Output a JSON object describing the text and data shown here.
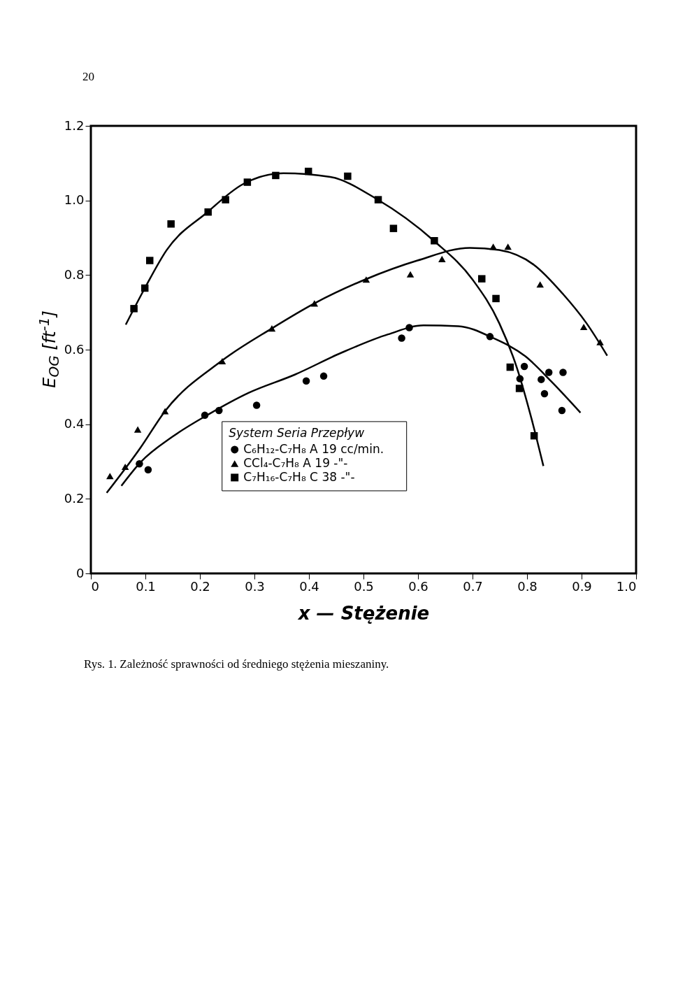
{
  "chart_data": {
    "type": "scatter",
    "xlabel": "x — Stężenie",
    "ylabel": "E$_{OG}$ [ft$^{-1}$]",
    "legend_title": "System   Seria   Przepływ",
    "legend": "bottom",
    "xlim": [
      0,
      1
    ],
    "xticks": [
      0,
      0.1,
      0.2,
      0.3,
      0.4,
      0.5,
      0.6,
      0.7,
      0.8,
      0.9,
      {
        "value": 1,
        "label": "1.0"
      }
    ],
    "ylim": [
      0,
      1.2
    ],
    "yticks": [
      0,
      0.2,
      0.4,
      0.6,
      0.8,
      {
        "value": 1,
        "label": "1.0"
      },
      1.2
    ],
    "annotations": [
      "20",
      "Rys. 1. Zależność sprawności od średniego stężenia mieszaniny."
    ],
    "series": [
      {
        "type": "scatter",
        "name": "C₆H₁₂-C₇H₈   A   19 cc/min.",
        "color": "#000000",
        "marker": "circle",
        "x": [
          0.089,
          0.105,
          0.209,
          0.235,
          0.304,
          0.395,
          0.427,
          0.57,
          0.584,
          0.732,
          0.787,
          0.795,
          0.826,
          0.832,
          0.84,
          0.864,
          0.866
        ],
        "values": [
          0.294,
          0.278,
          0.424,
          0.437,
          0.451,
          0.516,
          0.529,
          0.631,
          0.659,
          0.635,
          0.522,
          0.555,
          0.52,
          0.482,
          0.539,
          0.437,
          0.539
        ]
      },
      {
        "type": "scatter",
        "name": "CCl₄-C₇H₈   A   19  -\"-",
        "color": "#000000",
        "marker": "triangle",
        "x": [
          0.035,
          0.063,
          0.086,
          0.136,
          0.241,
          0.332,
          0.41,
          0.505,
          0.586,
          0.644,
          0.738,
          0.765,
          0.824,
          0.904,
          0.934
        ],
        "values": [
          0.261,
          0.286,
          0.386,
          0.435,
          0.569,
          0.657,
          0.724,
          0.788,
          0.802,
          0.843,
          0.876,
          0.876,
          0.775,
          0.661,
          0.62
        ]
      },
      {
        "type": "scatter",
        "name": "C₇H₁₆-C₇H₈   C   38  -\"-",
        "color": "#000000",
        "marker": "square",
        "x": [
          0.079,
          0.099,
          0.108,
          0.147,
          0.215,
          0.247,
          0.287,
          0.339,
          0.399,
          0.471,
          0.527,
          0.555,
          0.63,
          0.717,
          0.743,
          0.769,
          0.786,
          0.813
        ],
        "values": [
          0.71,
          0.765,
          0.839,
          0.937,
          0.969,
          1.002,
          1.049,
          1.067,
          1.078,
          1.065,
          1.002,
          0.925,
          0.892,
          0.79,
          0.737,
          0.553,
          0.496,
          0.369
        ]
      },
      {
        "type": "line",
        "color": "#000000",
        "line_style": "solid",
        "x": [
          0.056,
          0.091,
          0.15,
          0.214,
          0.289,
          0.374,
          0.46,
          0.545,
          0.61,
          0.674,
          0.738,
          0.797,
          0.845,
          0.898
        ],
        "values": [
          0.235,
          0.298,
          0.367,
          0.425,
          0.484,
          0.533,
          0.592,
          0.641,
          0.665,
          0.663,
          0.631,
          0.582,
          0.514,
          0.431
        ]
      },
      {
        "type": "line",
        "color": "#000000",
        "line_style": "solid",
        "x": [
          0.029,
          0.091,
          0.136,
          0.239,
          0.332,
          0.41,
          0.503,
          0.599,
          0.695,
          0.749,
          0.813,
          0.866,
          0.909,
          0.947
        ],
        "values": [
          0.216,
          0.337,
          0.435,
          0.569,
          0.657,
          0.724,
          0.788,
          0.839,
          0.873,
          0.867,
          0.827,
          0.749,
          0.671,
          0.584
        ]
      },
      {
        "type": "line",
        "color": "#000000",
        "line_style": "solid",
        "x": [
          0.064,
          0.099,
          0.139,
          0.214,
          0.278,
          0.353,
          0.439,
          0.524,
          0.629,
          0.7,
          0.749,
          0.781,
          0.808,
          0.83
        ],
        "values": [
          0.667,
          0.765,
          0.867,
          0.969,
          1.043,
          1.073,
          1.063,
          1.004,
          0.892,
          0.788,
          0.671,
          0.553,
          0.416,
          0.288
        ]
      }
    ]
  }
}
